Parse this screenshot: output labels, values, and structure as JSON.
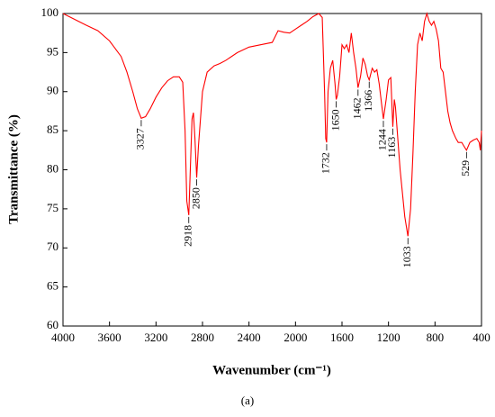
{
  "chart_data": {
    "type": "line",
    "caption": "(a)",
    "x_label": "Wavenumber (cm⁻¹)",
    "y_label": "Transmittance (%)",
    "x": [
      4000,
      3800,
      3700,
      3600,
      3500,
      3450,
      3400,
      3360,
      3327,
      3290,
      3250,
      3200,
      3150,
      3100,
      3050,
      3000,
      2970,
      2950,
      2935,
      2918,
      2905,
      2890,
      2878,
      2865,
      2850,
      2835,
      2820,
      2800,
      2760,
      2700,
      2650,
      2600,
      2500,
      2400,
      2300,
      2200,
      2150,
      2100,
      2050,
      2000,
      1950,
      1900,
      1850,
      1800,
      1770,
      1750,
      1740,
      1732,
      1720,
      1700,
      1680,
      1660,
      1650,
      1640,
      1620,
      1600,
      1580,
      1560,
      1540,
      1520,
      1500,
      1480,
      1462,
      1440,
      1420,
      1400,
      1380,
      1366,
      1340,
      1320,
      1300,
      1280,
      1260,
      1244,
      1220,
      1200,
      1180,
      1163,
      1150,
      1140,
      1120,
      1100,
      1080,
      1060,
      1033,
      1010,
      990,
      970,
      950,
      930,
      910,
      890,
      870,
      850,
      830,
      810,
      790,
      770,
      750,
      730,
      710,
      690,
      670,
      650,
      620,
      600,
      570,
      550,
      529,
      500,
      470,
      440,
      420,
      410,
      400
    ],
    "values": [
      100,
      98.5,
      97.8,
      96.5,
      94.5,
      92.5,
      90,
      87.8,
      86.6,
      86.8,
      87.8,
      89.3,
      90.5,
      91.4,
      91.9,
      91.9,
      91.2,
      85,
      76,
      74.2,
      80,
      86.5,
      87.3,
      84,
      79,
      83,
      86,
      90,
      92.5,
      93.3,
      93.6,
      94,
      95,
      95.7,
      96,
      96.3,
      97.8,
      97.6,
      97.5,
      98,
      98.5,
      99,
      99.6,
      100,
      99.5,
      90,
      84,
      83.5,
      90,
      93,
      94,
      91,
      89,
      89.5,
      92,
      96,
      95.5,
      96,
      95,
      97.5,
      95,
      93,
      90.5,
      92,
      94.3,
      93.5,
      92,
      91.5,
      93,
      92.5,
      92.8,
      91,
      88.5,
      86.5,
      89,
      91.5,
      91.8,
      85.5,
      89,
      88,
      84,
      80,
      77,
      74,
      71.5,
      75,
      82,
      90,
      96,
      97.5,
      96.5,
      99,
      100,
      99,
      98.5,
      99,
      98,
      96.5,
      93,
      92.5,
      90,
      87.5,
      86,
      85,
      84,
      83.5,
      83.5,
      83,
      82.5,
      83.5,
      83.8,
      84,
      83.5,
      82.5,
      85
    ],
    "color": "#ff0000",
    "peaks": [
      3327,
      2918,
      2850,
      1732,
      1650,
      1462,
      1366,
      1244,
      1163,
      1033,
      529
    ],
    "xlim": [
      4000,
      400
    ],
    "xticks": [
      4000,
      3600,
      3200,
      2800,
      2400,
      2000,
      1600,
      1200,
      800,
      400
    ],
    "ylim": [
      60,
      100
    ],
    "yticks": [
      60,
      65,
      70,
      75,
      80,
      85,
      90,
      95,
      100
    ]
  }
}
